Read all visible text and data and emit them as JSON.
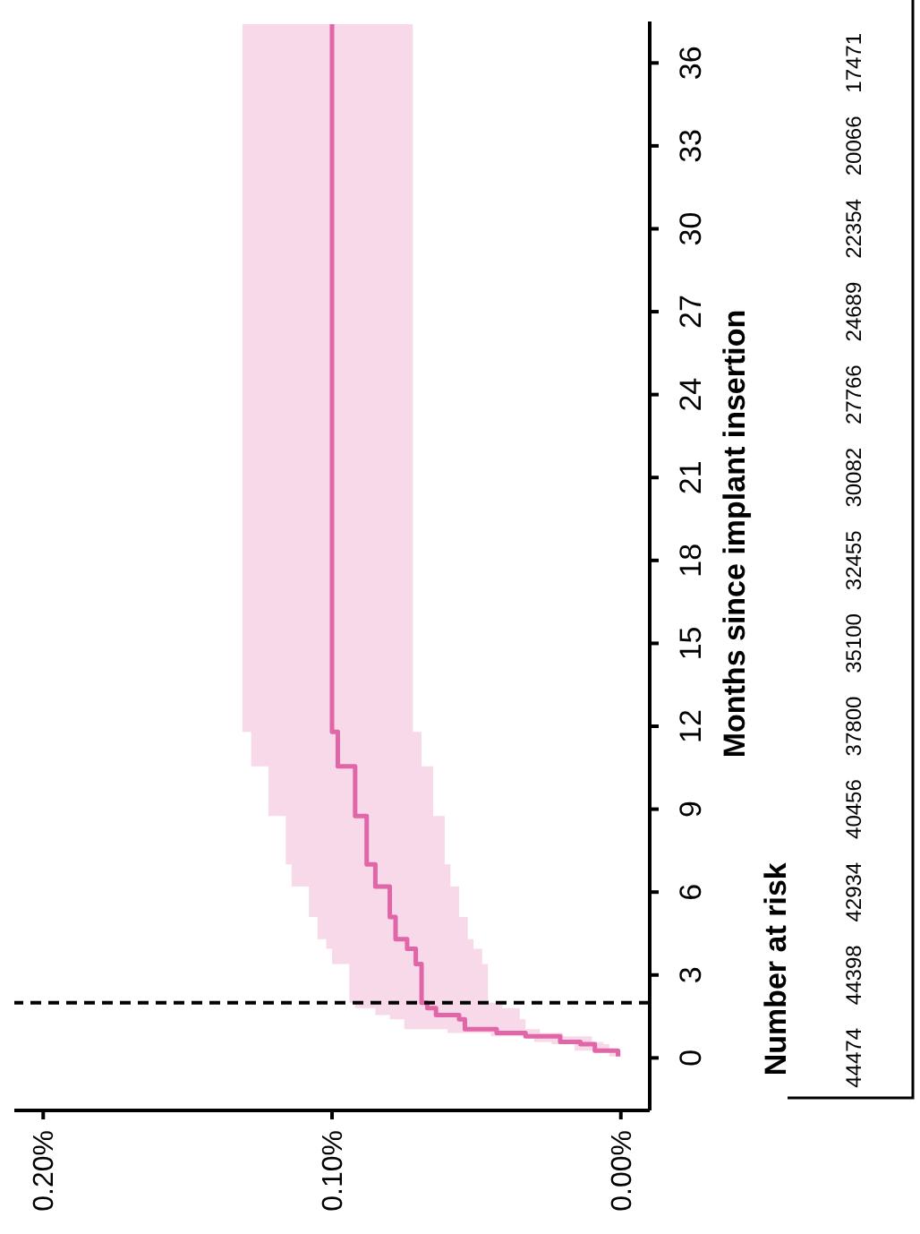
{
  "chart_data": {
    "type": "step",
    "orientation": "horizontal",
    "ylabel": "Months since implant insertion",
    "x": [
      0.05,
      0.26,
      0.5,
      0.58,
      0.78,
      0.9,
      1.04,
      1.4,
      1.55,
      1.8,
      2.0,
      3.4,
      3.95,
      4.3,
      5.1,
      6.2,
      7.0,
      8.75,
      10.55,
      11.8,
      37.4
    ],
    "series": [
      {
        "color": "#e066a8",
        "values": [
          0.001,
          0.009,
          0.014,
          0.021,
          0.033,
          0.043,
          0.054,
          0.056,
          0.064,
          0.067,
          0.069,
          0.071,
          0.074,
          0.078,
          0.08,
          0.085,
          0.088,
          0.092,
          0.098,
          0.1,
          0.1
        ],
        "lower": [
          0.0,
          0.004,
          0.006,
          0.01,
          0.02,
          0.028,
          0.033,
          0.035,
          0.035,
          0.041,
          0.046,
          0.048,
          0.051,
          0.053,
          0.056,
          0.059,
          0.061,
          0.065,
          0.069,
          0.072,
          0.072
        ],
        "upper": [
          0.004,
          0.016,
          0.024,
          0.03,
          0.045,
          0.06,
          0.075,
          0.08,
          0.085,
          0.092,
          0.094,
          0.1,
          0.102,
          0.105,
          0.108,
          0.114,
          0.116,
          0.122,
          0.128,
          0.131,
          0.131
        ]
      }
    ],
    "ylim": [
      -1.9,
      37.5
    ],
    "yticks": [
      0,
      3,
      6,
      9,
      12,
      15,
      18,
      21,
      24,
      27,
      30,
      33,
      36
    ],
    "xlim": [
      0.21,
      -0.01
    ],
    "xticks": [
      {
        "value": 0.2,
        "label": "0.20%"
      },
      {
        "value": 0.1,
        "label": "0.10%"
      },
      {
        "value": 0,
        "label": "0.00%"
      }
    ],
    "ref_lines": [
      {
        "axis": "y",
        "value": 2,
        "color": "#000000",
        "line_style": "dashed"
      }
    ],
    "annotations": [
      "Number at risk",
      "44474",
      "44398",
      "42934",
      "40456",
      "37800",
      "35100",
      "32455",
      "30082",
      "27766",
      "24689",
      "22354",
      "20066",
      "17471"
    ]
  }
}
